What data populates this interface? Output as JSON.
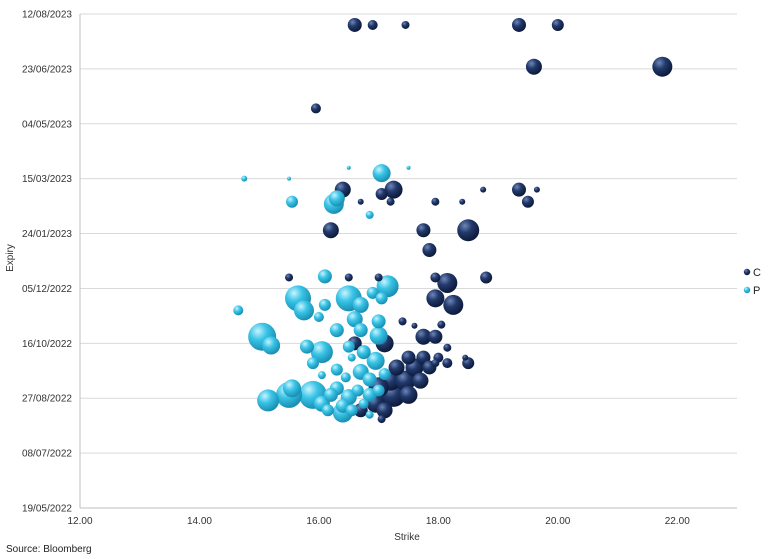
{
  "chart_data": {
    "type": "scatter",
    "xlabel": "Strike",
    "ylabel": "Expiry",
    "xlim": [
      12,
      23
    ],
    "x_ticks": [
      "12.00",
      "14.00",
      "16.00",
      "18.00",
      "20.00",
      "22.00"
    ],
    "x_tick_values": [
      12,
      14,
      16,
      18,
      20,
      22
    ],
    "y_ticks": [
      "19/05/2022",
      "08/07/2022",
      "27/08/2022",
      "16/10/2022",
      "05/12/2022",
      "24/01/2023",
      "15/03/2023",
      "04/05/2023",
      "23/06/2023",
      "12/08/2023"
    ],
    "ylim": [
      "19/05/2022",
      "12/08/2023"
    ],
    "grid": "horizontal",
    "legend_position": "right",
    "series": [
      {
        "name": "C",
        "color": "#1a2e5c",
        "points": [
          {
            "x": 16.6,
            "y": "02/08/2023",
            "s": 7
          },
          {
            "x": 16.9,
            "y": "02/08/2023",
            "s": 5
          },
          {
            "x": 17.45,
            "y": "02/08/2023",
            "s": 4
          },
          {
            "x": 19.35,
            "y": "02/08/2023",
            "s": 7
          },
          {
            "x": 20.0,
            "y": "02/08/2023",
            "s": 6
          },
          {
            "x": 19.6,
            "y": "25/06/2023",
            "s": 8
          },
          {
            "x": 21.75,
            "y": "25/06/2023",
            "s": 10
          },
          {
            "x": 15.95,
            "y": "18/05/2023",
            "s": 5
          },
          {
            "x": 16.4,
            "y": "05/03/2023",
            "s": 8
          },
          {
            "x": 17.25,
            "y": "05/03/2023",
            "s": 9
          },
          {
            "x": 17.05,
            "y": "01/03/2023",
            "s": 6
          },
          {
            "x": 16.7,
            "y": "22/02/2023",
            "s": 3
          },
          {
            "x": 17.2,
            "y": "22/02/2023",
            "s": 4
          },
          {
            "x": 17.95,
            "y": "22/02/2023",
            "s": 4
          },
          {
            "x": 18.4,
            "y": "22/02/2023",
            "s": 3
          },
          {
            "x": 18.75,
            "y": "05/03/2023",
            "s": 3
          },
          {
            "x": 19.35,
            "y": "05/03/2023",
            "s": 7
          },
          {
            "x": 19.65,
            "y": "05/03/2023",
            "s": 3
          },
          {
            "x": 19.5,
            "y": "22/02/2023",
            "s": 6
          },
          {
            "x": 16.2,
            "y": "27/01/2023",
            "s": 8
          },
          {
            "x": 17.75,
            "y": "27/01/2023",
            "s": 7
          },
          {
            "x": 18.5,
            "y": "27/01/2023",
            "s": 11
          },
          {
            "x": 17.85,
            "y": "09/01/2023",
            "s": 7
          },
          {
            "x": 15.5,
            "y": "15/12/2022",
            "s": 4
          },
          {
            "x": 16.5,
            "y": "15/12/2022",
            "s": 4
          },
          {
            "x": 17.0,
            "y": "15/12/2022",
            "s": 4
          },
          {
            "x": 17.95,
            "y": "15/12/2022",
            "s": 5
          },
          {
            "x": 18.15,
            "y": "10/12/2022",
            "s": 10
          },
          {
            "x": 18.8,
            "y": "15/12/2022",
            "s": 6
          },
          {
            "x": 17.95,
            "y": "26/11/2022",
            "s": 9
          },
          {
            "x": 18.25,
            "y": "20/11/2022",
            "s": 10
          },
          {
            "x": 17.4,
            "y": "05/11/2022",
            "s": 4
          },
          {
            "x": 17.6,
            "y": "01/11/2022",
            "s": 3
          },
          {
            "x": 18.05,
            "y": "02/11/2022",
            "s": 4
          },
          {
            "x": 17.75,
            "y": "22/10/2022",
            "s": 8
          },
          {
            "x": 17.95,
            "y": "22/10/2022",
            "s": 7
          },
          {
            "x": 17.1,
            "y": "16/10/2022",
            "s": 9
          },
          {
            "x": 16.6,
            "y": "16/10/2022",
            "s": 7
          },
          {
            "x": 18.15,
            "y": "12/10/2022",
            "s": 4
          },
          {
            "x": 17.5,
            "y": "03/10/2022",
            "s": 7
          },
          {
            "x": 17.75,
            "y": "03/10/2022",
            "s": 7
          },
          {
            "x": 18.0,
            "y": "03/10/2022",
            "s": 5
          },
          {
            "x": 18.15,
            "y": "28/09/2022",
            "s": 5
          },
          {
            "x": 18.45,
            "y": "03/10/2022",
            "s": 3
          },
          {
            "x": 18.5,
            "y": "28/09/2022",
            "s": 6
          },
          {
            "x": 17.3,
            "y": "24/09/2022",
            "s": 8
          },
          {
            "x": 17.6,
            "y": "24/09/2022",
            "s": 9
          },
          {
            "x": 17.85,
            "y": "24/09/2022",
            "s": 7
          },
          {
            "x": 17.95,
            "y": "28/09/2022",
            "s": 4
          },
          {
            "x": 17.2,
            "y": "12/09/2022",
            "s": 10
          },
          {
            "x": 17.45,
            "y": "12/09/2022",
            "s": 10
          },
          {
            "x": 17.7,
            "y": "12/09/2022",
            "s": 8
          },
          {
            "x": 17.0,
            "y": "06/09/2022",
            "s": 10
          },
          {
            "x": 17.25,
            "y": "30/08/2022",
            "s": 12
          },
          {
            "x": 17.5,
            "y": "30/08/2022",
            "s": 9
          },
          {
            "x": 16.95,
            "y": "22/08/2022",
            "s": 9
          },
          {
            "x": 17.1,
            "y": "16/08/2022",
            "s": 8
          },
          {
            "x": 16.7,
            "y": "16/08/2022",
            "s": 7
          },
          {
            "x": 17.05,
            "y": "08/08/2022",
            "s": 4
          }
        ]
      },
      {
        "name": "P",
        "color": "#2bbde0",
        "points": [
          {
            "x": 14.75,
            "y": "15/03/2023",
            "s": 3
          },
          {
            "x": 15.5,
            "y": "15/03/2023",
            "s": 2
          },
          {
            "x": 17.05,
            "y": "20/03/2023",
            "s": 9
          },
          {
            "x": 16.5,
            "y": "25/03/2023",
            "s": 2
          },
          {
            "x": 17.5,
            "y": "25/03/2023",
            "s": 2
          },
          {
            "x": 15.55,
            "y": "22/02/2023",
            "s": 6
          },
          {
            "x": 16.3,
            "y": "25/02/2023",
            "s": 8
          },
          {
            "x": 16.25,
            "y": "20/02/2023",
            "s": 10
          },
          {
            "x": 16.85,
            "y": "10/02/2023",
            "s": 4
          },
          {
            "x": 16.1,
            "y": "16/12/2022",
            "s": 7
          },
          {
            "x": 17.15,
            "y": "07/12/2022",
            "s": 11
          },
          {
            "x": 16.9,
            "y": "01/12/2022",
            "s": 6
          },
          {
            "x": 15.65,
            "y": "26/11/2022",
            "s": 13
          },
          {
            "x": 16.5,
            "y": "26/11/2022",
            "s": 13
          },
          {
            "x": 17.05,
            "y": "26/11/2022",
            "s": 6
          },
          {
            "x": 16.1,
            "y": "20/11/2022",
            "s": 6
          },
          {
            "x": 16.7,
            "y": "20/11/2022",
            "s": 8
          },
          {
            "x": 15.75,
            "y": "15/11/2022",
            "s": 10
          },
          {
            "x": 14.65,
            "y": "15/11/2022",
            "s": 5
          },
          {
            "x": 16.0,
            "y": "09/11/2022",
            "s": 5
          },
          {
            "x": 16.6,
            "y": "07/11/2022",
            "s": 8
          },
          {
            "x": 17.0,
            "y": "05/11/2022",
            "s": 7
          },
          {
            "x": 16.3,
            "y": "28/10/2022",
            "s": 7
          },
          {
            "x": 16.7,
            "y": "28/10/2022",
            "s": 7
          },
          {
            "x": 17.0,
            "y": "23/10/2022",
            "s": 9
          },
          {
            "x": 15.05,
            "y": "22/10/2022",
            "s": 14
          },
          {
            "x": 15.2,
            "y": "14/10/2022",
            "s": 9
          },
          {
            "x": 15.8,
            "y": "13/10/2022",
            "s": 7
          },
          {
            "x": 16.05,
            "y": "08/10/2022",
            "s": 11
          },
          {
            "x": 16.5,
            "y": "13/10/2022",
            "s": 6
          },
          {
            "x": 16.75,
            "y": "08/10/2022",
            "s": 7
          },
          {
            "x": 16.55,
            "y": "03/10/2022",
            "s": 4
          },
          {
            "x": 16.95,
            "y": "30/09/2022",
            "s": 9
          },
          {
            "x": 15.9,
            "y": "28/09/2022",
            "s": 6
          },
          {
            "x": 16.3,
            "y": "22/09/2022",
            "s": 6
          },
          {
            "x": 16.7,
            "y": "20/09/2022",
            "s": 8
          },
          {
            "x": 16.05,
            "y": "17/09/2022",
            "s": 4
          },
          {
            "x": 16.45,
            "y": "15/09/2022",
            "s": 5
          },
          {
            "x": 16.85,
            "y": "13/09/2022",
            "s": 7
          },
          {
            "x": 17.1,
            "y": "18/09/2022",
            "s": 6
          },
          {
            "x": 15.55,
            "y": "05/09/2022",
            "s": 9
          },
          {
            "x": 16.3,
            "y": "05/09/2022",
            "s": 7
          },
          {
            "x": 16.65,
            "y": "03/09/2022",
            "s": 6
          },
          {
            "x": 17.0,
            "y": "03/09/2022",
            "s": 6
          },
          {
            "x": 15.5,
            "y": "30/08/2022",
            "s": 13
          },
          {
            "x": 15.9,
            "y": "30/08/2022",
            "s": 14
          },
          {
            "x": 16.2,
            "y": "30/08/2022",
            "s": 7
          },
          {
            "x": 16.5,
            "y": "28/08/2022",
            "s": 8
          },
          {
            "x": 16.85,
            "y": "30/08/2022",
            "s": 7
          },
          {
            "x": 15.15,
            "y": "25/08/2022",
            "s": 11
          },
          {
            "x": 16.05,
            "y": "22/08/2022",
            "s": 8
          },
          {
            "x": 16.4,
            "y": "20/08/2022",
            "s": 7
          },
          {
            "x": 16.75,
            "y": "22/08/2022",
            "s": 5
          },
          {
            "x": 16.4,
            "y": "14/08/2022",
            "s": 10
          },
          {
            "x": 16.15,
            "y": "16/08/2022",
            "s": 6
          },
          {
            "x": 16.55,
            "y": "16/08/2022",
            "s": 6
          },
          {
            "x": 16.85,
            "y": "12/08/2022",
            "s": 4
          }
        ]
      }
    ],
    "source": "Source: Bloomberg"
  }
}
